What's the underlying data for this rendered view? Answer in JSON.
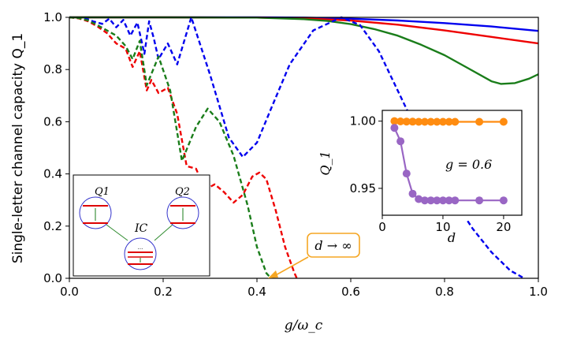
{
  "chart_data": [
    {
      "type": "line",
      "title": "",
      "xlabel": "g/ω_c",
      "ylabel": "Single-letter channel capacity Q_1",
      "xlim": [
        0.0,
        1.0
      ],
      "ylim": [
        0.0,
        1.0
      ],
      "xticks": [
        "0.0",
        "0.2",
        "0.4",
        "0.6",
        "0.8",
        "1.0"
      ],
      "yticks": [
        "0.0",
        "0.2",
        "0.4",
        "0.6",
        "0.8",
        "1.0"
      ],
      "series": [
        {
          "name": "blue solid",
          "color": "#0000ee",
          "style": "solid",
          "x": [
            0.0,
            0.2,
            0.4,
            0.5,
            0.6,
            0.7,
            0.8,
            0.9,
            1.0
          ],
          "y": [
            1.0,
            1.0,
            1.0,
            0.999,
            0.995,
            0.988,
            0.978,
            0.965,
            0.948
          ]
        },
        {
          "name": "red solid",
          "color": "#ee0000",
          "style": "solid",
          "x": [
            0.0,
            0.2,
            0.4,
            0.5,
            0.6,
            0.7,
            0.8,
            0.9,
            1.0
          ],
          "y": [
            1.0,
            1.0,
            0.999,
            0.996,
            0.988,
            0.972,
            0.95,
            0.925,
            0.9
          ]
        },
        {
          "name": "green solid",
          "color": "#1a7d1a",
          "style": "solid",
          "x": [
            0.0,
            0.2,
            0.4,
            0.5,
            0.55,
            0.6,
            0.65,
            0.7,
            0.75,
            0.8,
            0.85,
            0.9,
            0.92,
            0.95,
            0.98,
            1.0
          ],
          "y": [
            1.0,
            1.0,
            0.999,
            0.993,
            0.986,
            0.974,
            0.955,
            0.93,
            0.895,
            0.855,
            0.805,
            0.755,
            0.745,
            0.748,
            0.765,
            0.782
          ]
        },
        {
          "name": "blue dashed",
          "color": "#0000ee",
          "style": "dashed",
          "x": [
            0.0,
            0.02,
            0.04,
            0.05,
            0.07,
            0.085,
            0.1,
            0.115,
            0.13,
            0.145,
            0.16,
            0.17,
            0.18,
            0.19,
            0.21,
            0.23,
            0.26,
            0.3,
            0.34,
            0.37,
            0.4,
            0.43,
            0.47,
            0.52,
            0.58,
            0.62,
            0.66,
            0.7,
            0.74,
            0.78,
            0.82,
            0.86,
            0.9,
            0.94,
            0.97
          ],
          "y": [
            1.0,
            0.998,
            0.992,
            0.985,
            0.975,
            0.995,
            0.962,
            0.99,
            0.93,
            0.98,
            0.86,
            0.985,
            0.92,
            0.84,
            0.9,
            0.82,
            1.0,
            0.78,
            0.54,
            0.465,
            0.52,
            0.65,
            0.82,
            0.95,
            1.0,
            0.97,
            0.87,
            0.72,
            0.57,
            0.43,
            0.3,
            0.19,
            0.1,
            0.03,
            0.0
          ]
        },
        {
          "name": "red dashed",
          "color": "#ee0000",
          "style": "dashed",
          "x": [
            0.0,
            0.02,
            0.04,
            0.06,
            0.08,
            0.1,
            0.12,
            0.135,
            0.15,
            0.165,
            0.175,
            0.19,
            0.21,
            0.23,
            0.25,
            0.27,
            0.29,
            0.31,
            0.33,
            0.35,
            0.37,
            0.39,
            0.405,
            0.42,
            0.44,
            0.46,
            0.48,
            0.485
          ],
          "y": [
            1.0,
            0.996,
            0.985,
            0.965,
            0.94,
            0.9,
            0.88,
            0.81,
            0.87,
            0.72,
            0.76,
            0.71,
            0.73,
            0.63,
            0.43,
            0.42,
            0.34,
            0.36,
            0.33,
            0.29,
            0.32,
            0.39,
            0.405,
            0.38,
            0.26,
            0.12,
            0.02,
            0.0
          ]
        },
        {
          "name": "green dashed",
          "color": "#1a7d1a",
          "style": "dashed",
          "x": [
            0.0,
            0.02,
            0.04,
            0.06,
            0.08,
            0.1,
            0.12,
            0.135,
            0.15,
            0.165,
            0.19,
            0.215,
            0.24,
            0.27,
            0.295,
            0.32,
            0.35,
            0.38,
            0.4,
            0.42,
            0.43
          ],
          "y": [
            1.0,
            0.997,
            0.988,
            0.97,
            0.95,
            0.93,
            0.89,
            0.84,
            0.91,
            0.74,
            0.85,
            0.72,
            0.45,
            0.58,
            0.65,
            0.6,
            0.47,
            0.28,
            0.12,
            0.02,
            0.0
          ]
        }
      ],
      "annotation": {
        "text": "d → ∞",
        "point_x": 0.425,
        "point_y": 0.0,
        "arrow_color": "#f5a623"
      },
      "schematic": {
        "q1": "Q1",
        "q2": "Q2",
        "ic": "IC",
        "dots": "..."
      }
    },
    {
      "type": "line",
      "title": "",
      "xlabel": "d",
      "ylabel": "Q_1",
      "xlim": [
        0,
        23
      ],
      "ylim": [
        0.93,
        1.008
      ],
      "xticks": [
        "0",
        "10",
        "20"
      ],
      "yticks": [
        "0.95",
        "1.00"
      ],
      "annotation": "g = 0.6",
      "series": [
        {
          "name": "orange",
          "color": "#ff8c10",
          "x": [
            2,
            3,
            4,
            5,
            6,
            7,
            8,
            9,
            10,
            11,
            12,
            16,
            20
          ],
          "y": [
            1.0,
            0.9998,
            0.9997,
            0.9996,
            0.9995,
            0.9995,
            0.9995,
            0.9995,
            0.9995,
            0.9995,
            0.9995,
            0.9995,
            0.9995
          ]
        },
        {
          "name": "purple",
          "color": "#9966c4",
          "x": [
            2,
            3,
            4,
            5,
            6,
            7,
            8,
            9,
            10,
            11,
            12,
            16,
            20
          ],
          "y": [
            0.995,
            0.985,
            0.961,
            0.946,
            0.942,
            0.941,
            0.941,
            0.941,
            0.941,
            0.941,
            0.941,
            0.941,
            0.941
          ]
        }
      ]
    }
  ]
}
